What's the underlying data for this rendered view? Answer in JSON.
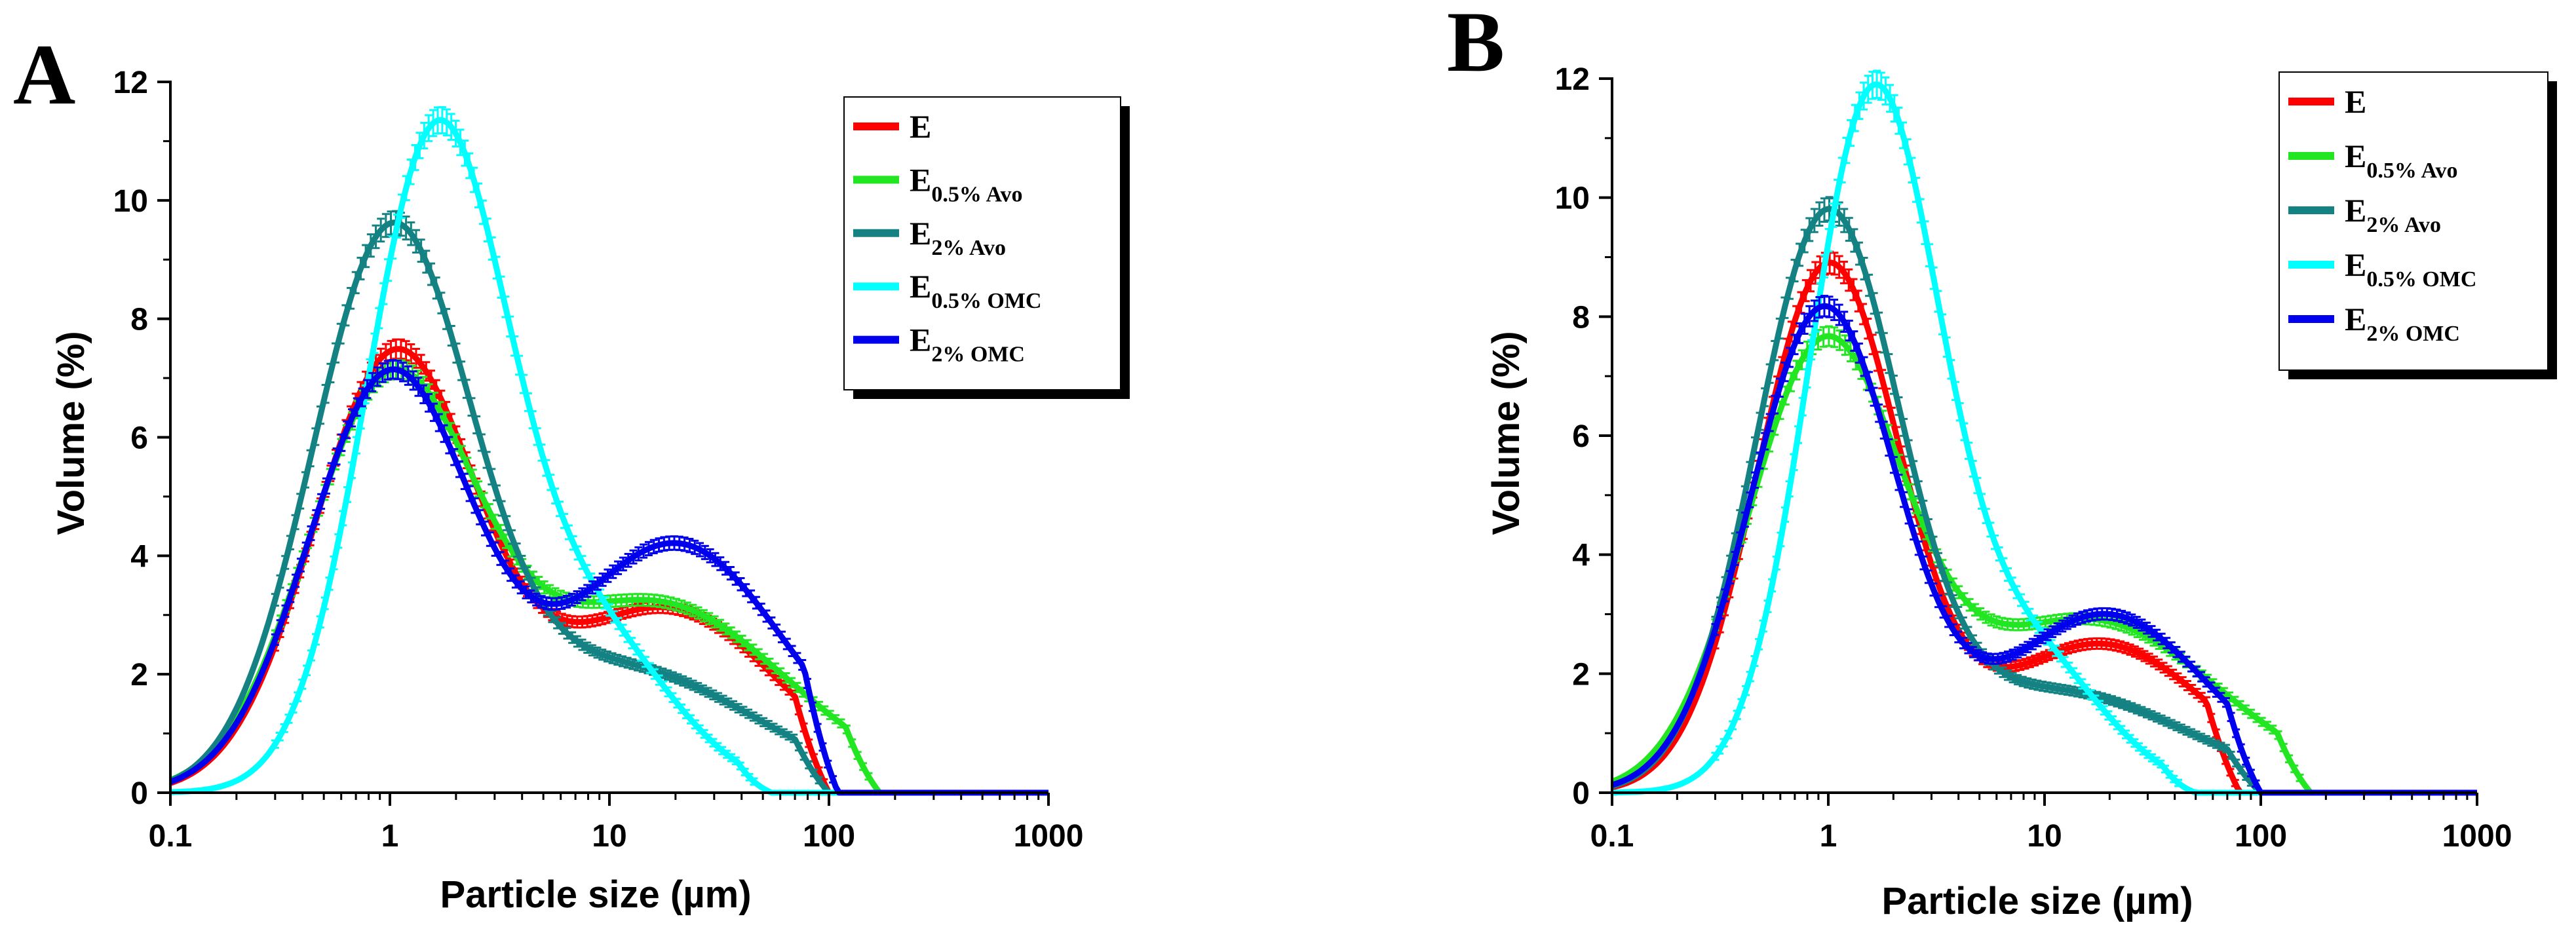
{
  "figure": {
    "colors": {
      "E": "#ff0000",
      "E_0.5_Avo": "#22e622",
      "E_2_Avo": "#148282",
      "E_0.5_OMC": "#00ffff",
      "E_2_OMC": "#0000ee"
    }
  },
  "chart_data": [
    {
      "panel": "A",
      "type": "line",
      "xscale": "log",
      "xlabel": "Particle size (µm)",
      "ylabel": "Volume (%)",
      "xlim": [
        0.1,
        1000
      ],
      "ylim": [
        0,
        12
      ],
      "xticks": [
        "0.1",
        "1",
        "10",
        "100",
        "1000"
      ],
      "yticks": [
        "0",
        "2",
        "4",
        "6",
        "8",
        "10",
        "12"
      ],
      "legend_position": "top-right",
      "series": [
        {
          "name": "E",
          "base": "E",
          "sub": "",
          "color": "#ff0000",
          "peaks": [
            {
              "mu": 1.05,
              "sigma": 0.37,
              "amp": 7.3
            },
            {
              "mu": 18,
              "sigma": 0.52,
              "amp": 3.1
            }
          ],
          "cutoff": 100
        },
        {
          "name": "E0.5% Avo",
          "base": "E",
          "sub": "0.5% Avo",
          "color": "#22e622",
          "peaks": [
            {
              "mu": 1.0,
              "sigma": 0.38,
              "amp": 6.7
            },
            {
              "mu": 16,
              "sigma": 0.6,
              "amp": 3.2
            }
          ],
          "cutoff": 170
        },
        {
          "name": "E2% Avo",
          "base": "E",
          "sub": "2% Avo",
          "color": "#148282",
          "peaks": [
            {
              "mu": 1.0,
              "sigma": 0.36,
              "amp": 9.1
            },
            {
              "mu": 11,
              "sigma": 0.62,
              "amp": 2.1
            }
          ],
          "cutoff": 100
        },
        {
          "name": "E0.5% OMC",
          "base": "E",
          "sub": "0.5% OMC",
          "color": "#00ffff",
          "peaks": [
            {
              "mu": 1.6,
              "sigma": 0.32,
              "amp": 10.8
            },
            {
              "mu": 7.8,
              "sigma": 0.38,
              "amp": 2.7
            }
          ],
          "cutoff": 55
        },
        {
          "name": "E2% OMC",
          "base": "E",
          "sub": "2% OMC",
          "color": "#0000ee",
          "peaks": [
            {
              "mu": 1.0,
              "sigma": 0.37,
              "amp": 7.0
            },
            {
              "mu": 20,
              "sigma": 0.5,
              "amp": 4.2
            }
          ],
          "cutoff": 110
        }
      ]
    },
    {
      "panel": "B",
      "type": "line",
      "xscale": "log",
      "xlabel": "Particle size (µm)",
      "ylabel": "Volume (%)",
      "xlim": [
        0.1,
        1000
      ],
      "ylim": [
        0,
        12
      ],
      "xticks": [
        "0.1",
        "1",
        "10",
        "100",
        "1000"
      ],
      "yticks": [
        "0",
        "2",
        "4",
        "6",
        "8",
        "10",
        "12"
      ],
      "legend_position": "top-right",
      "series": [
        {
          "name": "E",
          "base": "E",
          "sub": "",
          "color": "#ff0000",
          "peaks": [
            {
              "mu": 1.0,
              "sigma": 0.33,
              "amp": 8.8
            },
            {
              "mu": 18,
              "sigma": 0.5,
              "amp": 2.5
            }
          ],
          "cutoff": 80
        },
        {
          "name": "E0.5% Avo",
          "base": "E",
          "sub": "0.5% Avo",
          "color": "#22e622",
          "peaks": [
            {
              "mu": 0.95,
              "sigma": 0.36,
              "amp": 7.3
            },
            {
              "mu": 16,
              "sigma": 0.6,
              "amp": 2.9
            }
          ],
          "cutoff": 170
        },
        {
          "name": "E2% Avo",
          "base": "E",
          "sub": "2% Avo",
          "color": "#148282",
          "peaks": [
            {
              "mu": 0.98,
              "sigma": 0.33,
              "amp": 9.4
            },
            {
              "mu": 11,
              "sigma": 0.62,
              "amp": 1.7
            }
          ],
          "cutoff": 100
        },
        {
          "name": "E0.5% OMC",
          "base": "E",
          "sub": "0.5% OMC",
          "color": "#00ffff",
          "peaks": [
            {
              "mu": 1.6,
              "sigma": 0.3,
              "amp": 11.5
            },
            {
              "mu": 7.8,
              "sigma": 0.36,
              "amp": 2.4
            }
          ],
          "cutoff": 50
        },
        {
          "name": "E2% OMC",
          "base": "E",
          "sub": "2% OMC",
          "color": "#0000ee",
          "peaks": [
            {
              "mu": 0.95,
              "sigma": 0.34,
              "amp": 8.1
            },
            {
              "mu": 19,
              "sigma": 0.48,
              "amp": 3.0
            }
          ],
          "cutoff": 100
        }
      ]
    }
  ]
}
